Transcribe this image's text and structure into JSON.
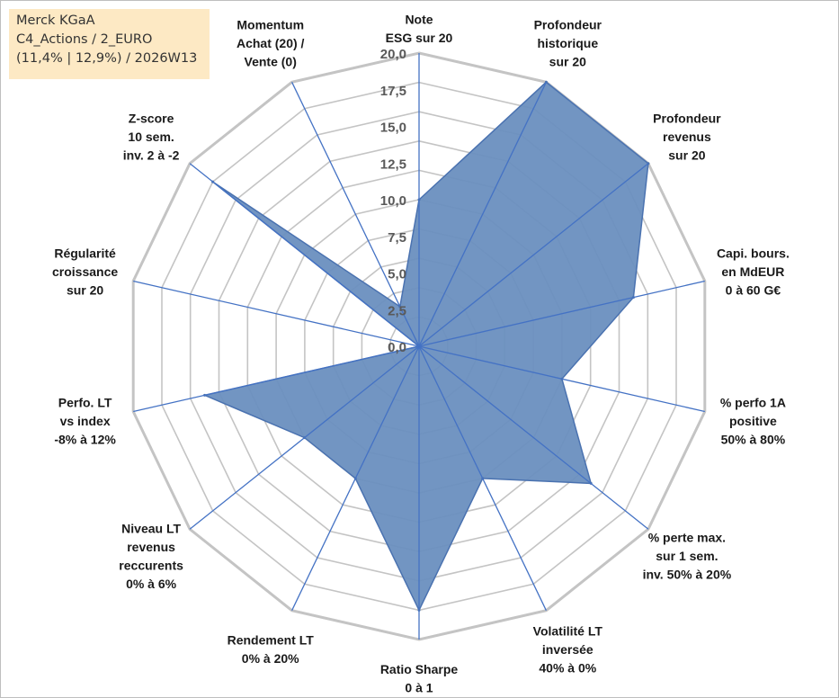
{
  "info": {
    "line1": "Merck KGaA",
    "line2": "C4_Actions / 2_EURO",
    "line3": "(11,4% | 12,9%) / 2026W13"
  },
  "chart_data": {
    "type": "radar",
    "title": "",
    "rmax": 20,
    "ticks": [
      "0,0",
      "2,5",
      "5,0",
      "7,5",
      "10,0",
      "12,5",
      "15,0",
      "17,5",
      "20,0"
    ],
    "grid_levels": 10,
    "colors": {
      "fill": "#6a8fbf",
      "stroke": "#4a72b0",
      "grid": "#c4c4c4",
      "spoke": "#4472c4"
    },
    "axes": [
      {
        "label": [
          "Note",
          "ESG sur 20"
        ],
        "value": 10.0
      },
      {
        "label": [
          "Profondeur",
          "historique",
          "sur 20"
        ],
        "value": 20.0
      },
      {
        "label": [
          "Profondeur",
          "revenus",
          "sur 20"
        ],
        "value": 20.0
      },
      {
        "label": [
          "Capi. bours.",
          "en MdEUR",
          "0 à 60 G€"
        ],
        "value": 15.0
      },
      {
        "label": [
          "% perfo 1A",
          "positive",
          "50% à 80%"
        ],
        "value": 10.0
      },
      {
        "label": [
          "% perte max.",
          "sur 1 sem.",
          "inv. 50% à 20%"
        ],
        "value": 15.0
      },
      {
        "label": [
          "Volatilité LT",
          "inversée",
          "40% à 0%"
        ],
        "value": 10.0
      },
      {
        "label": [
          "Ratio Sharpe",
          "0 à 1"
        ],
        "value": 18.0
      },
      {
        "label": [
          "Rendement LT",
          "0% à 20%"
        ],
        "value": 10.0
      },
      {
        "label": [
          "Niveau LT",
          "revenus",
          "reccurents",
          "0% à 6%"
        ],
        "value": 10.0
      },
      {
        "label": [
          "Perfo. LT",
          "vs index",
          "-8% à 12%"
        ],
        "value": 15.0
      },
      {
        "label": [
          "Régularité",
          "croissance",
          "sur 20"
        ],
        "value": 0.0
      },
      {
        "label": [
          "Z-score",
          "10 sem.",
          "inv. 2 à -2"
        ],
        "value": 18.0
      },
      {
        "label": [
          "Momentum",
          "Achat (20) /",
          "Vente (0)"
        ],
        "value": 3.0
      }
    ]
  }
}
